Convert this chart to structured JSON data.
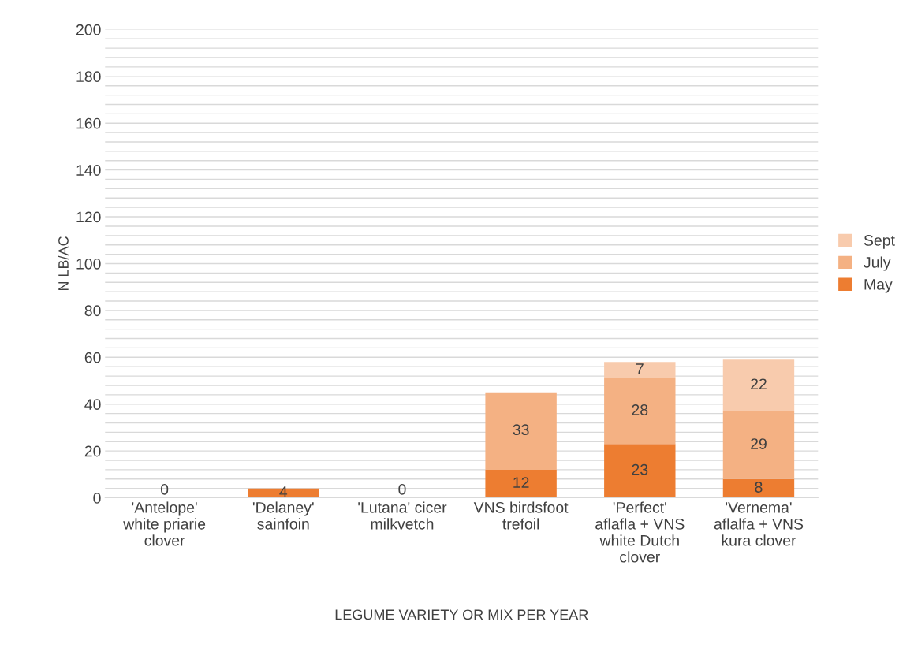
{
  "chart_data": {
    "type": "bar",
    "stacked": true,
    "ylabel": "N LB/AC",
    "xlabel": "LEGUME VARIETY OR MIX PER YEAR",
    "categories": [
      "'Antelope' white priarie clover",
      "'Delaney' sainfoin",
      "'Lutana' cicer milkvetch",
      "VNS birdsfoot trefoil",
      "'Perfect' aflafla + VNS white Dutch clover",
      "'Vernema' aflalfa + VNS kura clover"
    ],
    "series": [
      {
        "name": "May",
        "color": "#ed7d31",
        "values": [
          0,
          4,
          0,
          12,
          23,
          8
        ]
      },
      {
        "name": "July",
        "color": "#f4b183",
        "values": [
          null,
          null,
          null,
          33,
          28,
          29
        ]
      },
      {
        "name": "Sept",
        "color": "#f8cbad",
        "values": [
          null,
          null,
          null,
          null,
          7,
          22
        ]
      }
    ],
    "data_labels": true,
    "legend": "right",
    "grid": "y",
    "ylim": [
      0,
      200
    ],
    "yticks": [
      0,
      {
        "value": 4,
        "label": null
      },
      {
        "value": 8,
        "label": null
      },
      {
        "value": 12,
        "label": null
      },
      {
        "value": 16,
        "label": null
      },
      20,
      {
        "value": 24,
        "label": null
      },
      {
        "value": 28,
        "label": null
      },
      {
        "value": 32,
        "label": null
      },
      {
        "value": 36,
        "label": null
      },
      40,
      {
        "value": 44,
        "label": null
      },
      {
        "value": 48,
        "label": null
      },
      {
        "value": 52,
        "label": null
      },
      {
        "value": 56,
        "label": null
      },
      60,
      {
        "value": 64,
        "label": null
      },
      {
        "value": 68,
        "label": null
      },
      {
        "value": 72,
        "label": null
      },
      {
        "value": 76,
        "label": null
      },
      80,
      {
        "value": 84,
        "label": null
      },
      {
        "value": 88,
        "label": null
      },
      {
        "value": 92,
        "label": null
      },
      {
        "value": 96,
        "label": null
      },
      100,
      {
        "value": 104,
        "label": null
      },
      {
        "value": 108,
        "label": null
      },
      {
        "value": 112,
        "label": null
      },
      {
        "value": 116,
        "label": null
      },
      120,
      {
        "value": 124,
        "label": null
      },
      {
        "value": 128,
        "label": null
      },
      {
        "value": 132,
        "label": null
      },
      {
        "value": 136,
        "label": null
      },
      140,
      {
        "value": 144,
        "label": null
      },
      {
        "value": 148,
        "label": null
      },
      {
        "value": 152,
        "label": null
      },
      {
        "value": 156,
        "label": null
      },
      160,
      {
        "value": 164,
        "label": null
      },
      {
        "value": 168,
        "label": null
      },
      {
        "value": 172,
        "label": null
      },
      {
        "value": 176,
        "label": null
      },
      180,
      {
        "value": 184,
        "label": null
      },
      {
        "value": 188,
        "label": null
      },
      {
        "value": 192,
        "label": null
      },
      {
        "value": 196,
        "label": null
      },
      200
    ]
  }
}
